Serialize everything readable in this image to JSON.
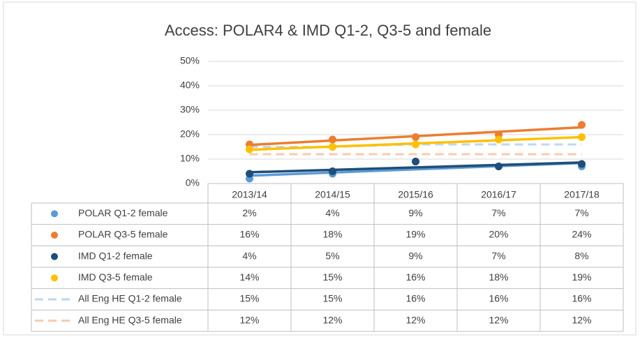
{
  "chart_data": {
    "type": "line",
    "title": "Access: POLAR4 & IMD Q1-2, Q3-5 and female",
    "categories": [
      "2013/14",
      "2014/15",
      "2015/16",
      "2016/17",
      "2017/18"
    ],
    "ylim": [
      0,
      50
    ],
    "yticks": [
      {
        "value": 0,
        "label": "0%"
      },
      {
        "value": 10,
        "label": "10%"
      },
      {
        "value": 20,
        "label": "20%"
      },
      {
        "value": 30,
        "label": "30%"
      },
      {
        "value": 40,
        "label": "40%"
      },
      {
        "value": 50,
        "label": "50%"
      }
    ],
    "grid": true,
    "legend": "table",
    "series": [
      {
        "name": "POLAR Q1-2 female",
        "color": "#5b9bd5",
        "style": "marker-trendline",
        "values": [
          2,
          4,
          9,
          7,
          7
        ],
        "value_labels": [
          "2%",
          "4%",
          "9%",
          "7%",
          "7%"
        ]
      },
      {
        "name": "POLAR Q3-5 female",
        "color": "#ed7d31",
        "style": "marker-trendline",
        "values": [
          16,
          18,
          19,
          20,
          24
        ],
        "value_labels": [
          "16%",
          "18%",
          "19%",
          "20%",
          "24%"
        ]
      },
      {
        "name": "IMD Q1-2 female",
        "color": "#1f4e79",
        "style": "marker-trendline",
        "values": [
          4,
          5,
          9,
          7,
          8
        ],
        "value_labels": [
          "4%",
          "5%",
          "9%",
          "7%",
          "8%"
        ]
      },
      {
        "name": "IMD Q3-5 female",
        "color": "#ffc000",
        "style": "marker-trendline",
        "values": [
          14,
          15,
          16,
          18,
          19
        ],
        "value_labels": [
          "14%",
          "15%",
          "16%",
          "18%",
          "19%"
        ]
      },
      {
        "name": "All Eng HE Q1-2 female",
        "color": "#bdd7ee",
        "style": "dashed",
        "values": [
          15,
          15,
          16,
          16,
          16
        ],
        "value_labels": [
          "15%",
          "15%",
          "16%",
          "16%",
          "16%"
        ]
      },
      {
        "name": "All Eng HE Q3-5 female",
        "color": "#f8cbad",
        "style": "dashed",
        "values": [
          12,
          12,
          12,
          12,
          12
        ],
        "value_labels": [
          "12%",
          "12%",
          "12%",
          "12%",
          "12%"
        ]
      }
    ]
  }
}
